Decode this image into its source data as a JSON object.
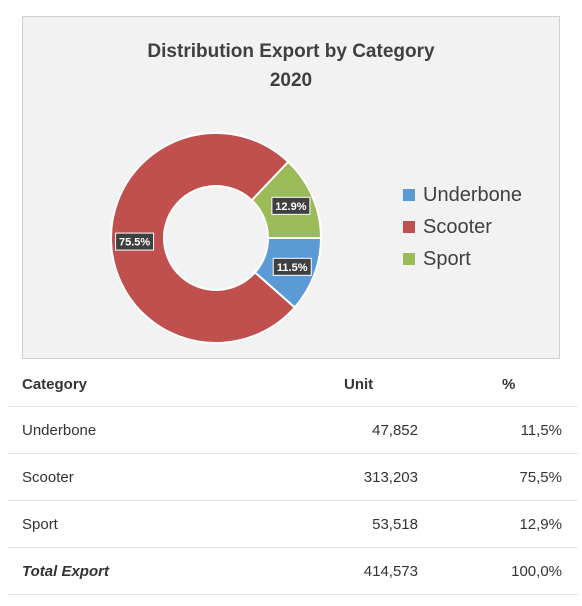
{
  "chart_data": {
    "type": "donut",
    "title_line1": "Distribution Export by Category",
    "title_line2": "2020",
    "legend_position": "right",
    "series": [
      {
        "name": "Underbone",
        "value": 11.5,
        "label": "11.5%",
        "color": "#5b9bd5"
      },
      {
        "name": "Scooter",
        "value": 75.5,
        "label": "75.5%",
        "color": "#c0504d"
      },
      {
        "name": "Sport",
        "value": 12.9,
        "label": "12.9%",
        "color": "#9bbb59"
      }
    ]
  },
  "table": {
    "headers": {
      "category": "Category",
      "unit": "Unit",
      "percent": "%"
    },
    "rows": [
      {
        "category": "Underbone",
        "unit": "47,852",
        "percent": "11,5%"
      },
      {
        "category": "Scooter",
        "unit": "313,203",
        "percent": "75,5%"
      },
      {
        "category": "Sport",
        "unit": "53,518",
        "percent": "12,9%"
      }
    ],
    "total": {
      "category": "Total Export",
      "unit": "414,573",
      "percent": "100,0%"
    }
  }
}
